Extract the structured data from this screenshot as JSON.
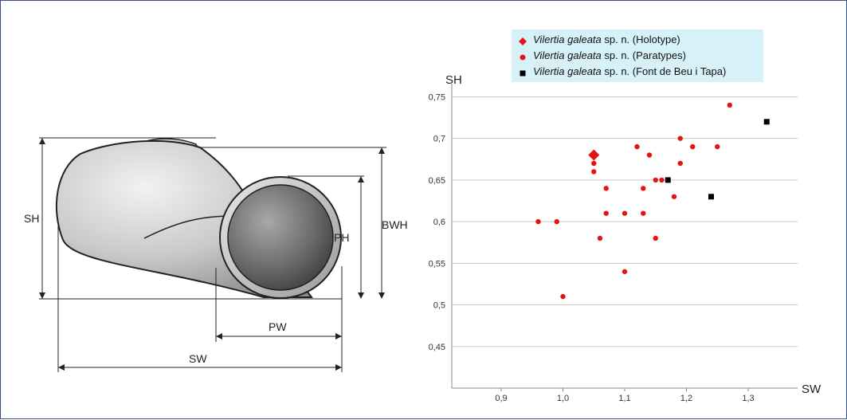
{
  "diagram": {
    "labels": {
      "sh": "SH",
      "ph": "PH",
      "bwh": "BWH",
      "pw": "PW",
      "sw": "SW"
    }
  },
  "legend": [
    {
      "italic": "Vilertia galeata",
      "rest": " sp. n. (Holotype)",
      "marker": "diamond",
      "color": "#e31414"
    },
    {
      "italic": "Vilertia galeata",
      "rest": " sp. n. (Paratypes)",
      "marker": "circle",
      "color": "#e31414"
    },
    {
      "italic": "Vilertia galeata",
      "rest": " sp. n. (Font de Beu i Tapa)",
      "marker": "square",
      "color": "#000000"
    }
  ],
  "chart_data": {
    "type": "scatter",
    "xlabel": "SW",
    "ylabel": "SH",
    "xlim": [
      0.82,
      1.38
    ],
    "ylim": [
      0.4,
      0.76
    ],
    "xticks": [
      "0,9",
      "1,0",
      "1,1",
      "1,2",
      "1,3"
    ],
    "yticks": [
      "0,45",
      "0,5",
      "0,55",
      "0,6",
      "0,65",
      "0,7",
      "0,75"
    ],
    "grid": "horizontal",
    "legend_position": "top",
    "series": [
      {
        "name": "Vilertia galeata sp. n. (Holotype)",
        "marker": "diamond",
        "color": "#e31414",
        "points": [
          [
            1.05,
            0.68
          ]
        ]
      },
      {
        "name": "Vilertia galeata sp. n. (Paratypes)",
        "marker": "circle",
        "color": "#e31414",
        "points": [
          [
            1.27,
            0.74
          ],
          [
            1.12,
            0.69
          ],
          [
            1.19,
            0.7
          ],
          [
            1.21,
            0.69
          ],
          [
            1.25,
            0.69
          ],
          [
            1.14,
            0.68
          ],
          [
            1.05,
            0.67
          ],
          [
            1.19,
            0.67
          ],
          [
            1.05,
            0.66
          ],
          [
            1.15,
            0.65
          ],
          [
            1.16,
            0.65
          ],
          [
            1.07,
            0.64
          ],
          [
            1.13,
            0.64
          ],
          [
            1.18,
            0.63
          ],
          [
            0.96,
            0.6
          ],
          [
            0.99,
            0.6
          ],
          [
            1.07,
            0.61
          ],
          [
            1.1,
            0.61
          ],
          [
            1.13,
            0.61
          ],
          [
            1.06,
            0.58
          ],
          [
            1.15,
            0.58
          ],
          [
            1.1,
            0.54
          ],
          [
            1.0,
            0.51
          ]
        ]
      },
      {
        "name": "Vilertia galeata sp. n. (Font de Beu i Tapa)",
        "marker": "square",
        "color": "#000000",
        "points": [
          [
            1.33,
            0.72
          ],
          [
            1.17,
            0.65
          ],
          [
            1.24,
            0.63
          ]
        ]
      }
    ]
  }
}
